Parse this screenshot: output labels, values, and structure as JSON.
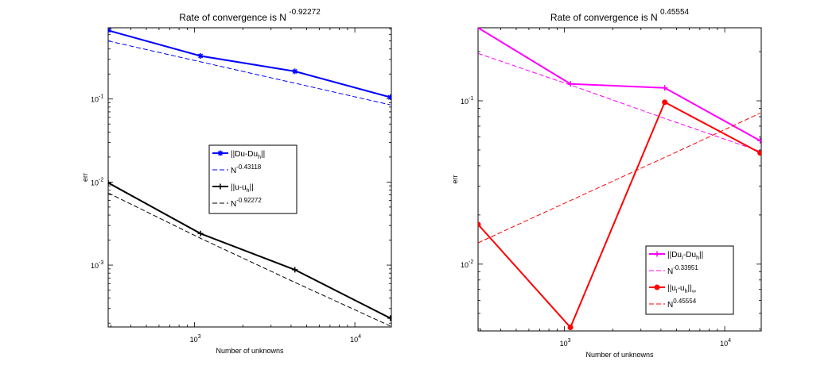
{
  "chart_data": [
    {
      "type": "line",
      "scale": {
        "x": "log",
        "y": "log"
      },
      "title": "Rate of convergence is N",
      "title_exponent": "-0.92272",
      "xlabel": "Number of unknowns",
      "ylabel": "err",
      "xlim": [
        289,
        16900
      ],
      "ylim": [
        0.00018,
        0.72
      ],
      "xticks": [
        {
          "base": "10",
          "exp": "3",
          "value": 1000
        },
        {
          "base": "10",
          "exp": "4",
          "value": 10000
        }
      ],
      "yticks": [
        {
          "base": "10",
          "exp": "-3",
          "value": 0.001
        },
        {
          "base": "10",
          "exp": "-2",
          "value": 0.01
        },
        {
          "base": "10",
          "exp": "-1",
          "value": 0.1
        }
      ],
      "x": [
        289,
        1089,
        4225,
        16641
      ],
      "series": [
        {
          "name": "||Du-Du_h||",
          "legend_main": "||Du-Du",
          "legend_sub": "h",
          "legend_tail": "||",
          "values": [
            0.67,
            0.33,
            0.215,
            0.105
          ],
          "color": "#0000ff",
          "style": "solid",
          "marker": "star"
        },
        {
          "name": "N^-0.43118",
          "legend_main": "N",
          "legend_sup": "-0.43118",
          "values": [
            0.5,
            0.28,
            0.155,
            0.085
          ],
          "color": "#0000ff",
          "style": "dashed",
          "marker": "none"
        },
        {
          "name": "||u-u_h||",
          "legend_main": "||u-u",
          "legend_sub": "h",
          "legend_tail": "||",
          "values": [
            0.0098,
            0.0024,
            0.00088,
            0.00023
          ],
          "color": "#000000",
          "style": "solid",
          "marker": "plus"
        },
        {
          "name": "N^-0.92272",
          "legend_main": "N",
          "legend_sup": "-0.92272",
          "values": [
            0.0074,
            0.0021,
            0.00062,
            0.000185
          ],
          "color": "#000000",
          "style": "dashed",
          "marker": "none"
        }
      ]
    },
    {
      "type": "line",
      "scale": {
        "x": "log",
        "y": "log"
      },
      "title": "Rate of convergence is N",
      "title_exponent": "0.45554",
      "xlabel": "Number of unknowns",
      "ylabel": "err",
      "xlim": [
        289,
        16900
      ],
      "ylim": [
        0.0039,
        0.28
      ],
      "xticks": [
        {
          "base": "10",
          "exp": "3",
          "value": 1000
        },
        {
          "base": "10",
          "exp": "4",
          "value": 10000
        }
      ],
      "yticks": [
        {
          "base": "10",
          "exp": "-2",
          "value": 0.01
        },
        {
          "base": "10",
          "exp": "-1",
          "value": 0.1
        }
      ],
      "x": [
        289,
        1089,
        4225,
        16641
      ],
      "series": [
        {
          "name": "||Du_I-Du_h||",
          "legend_main": "||Du",
          "legend_sub": "I",
          "legend_mid": "-Du",
          "legend_sub2": "h",
          "legend_tail": "||",
          "values": [
            0.28,
            0.127,
            0.12,
            0.057
          ],
          "color": "#ff00ff",
          "style": "solid",
          "marker": "plus"
        },
        {
          "name": "N^-0.33951",
          "legend_main": "N",
          "legend_sup": "-0.33951",
          "values": [
            0.195,
            0.125,
            0.078,
            0.049
          ],
          "color": "#ff00ff",
          "style": "dashed",
          "marker": "none"
        },
        {
          "name": "||u_I-u_h||_inf",
          "legend_main": "||u",
          "legend_sub": "I",
          "legend_mid": "-u",
          "legend_sub2": "h",
          "legend_tail": "||",
          "legend_sub3": "∞",
          "values": [
            0.0175,
            0.0041,
            0.098,
            0.048
          ],
          "color": "#ff0000",
          "style": "solid",
          "marker": "dot"
        },
        {
          "name": "N^0.45554",
          "legend_main": "N",
          "legend_sup": "0.45554",
          "values": [
            0.0135,
            0.0245,
            0.045,
            0.084
          ],
          "color": "#ff0000",
          "style": "dashed",
          "marker": "none"
        }
      ]
    }
  ]
}
